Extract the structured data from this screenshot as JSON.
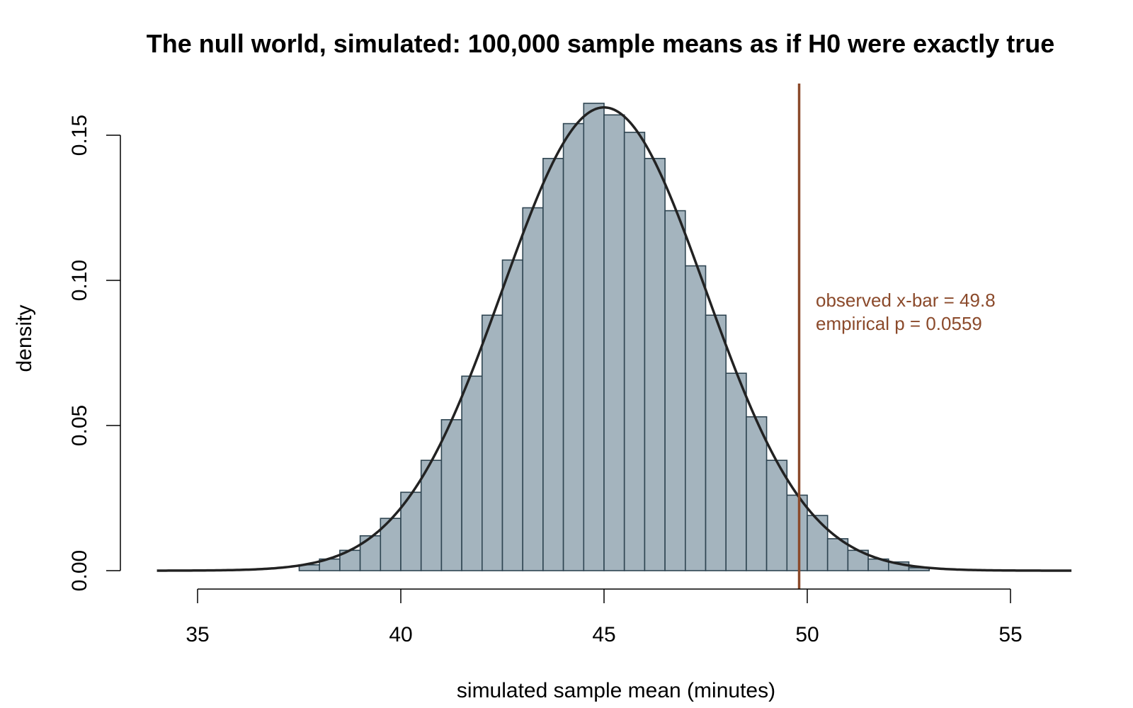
{
  "chart_data": {
    "type": "bar",
    "title": "The null world, simulated: 100,000 sample means as if H0 were exactly true",
    "xlabel": "simulated sample mean (minutes)",
    "ylabel": "density",
    "xlim": [
      33.8,
      56.5
    ],
    "ylim": [
      0,
      0.165
    ],
    "x_ticks": [
      35,
      40,
      45,
      50,
      55
    ],
    "x_tick_labels": [
      "35",
      "40",
      "45",
      "50",
      "55"
    ],
    "y_ticks": [
      0,
      0.05,
      0.1,
      0.15
    ],
    "y_tick_labels": [
      "0.00",
      "0.05",
      "0.10",
      "0.15"
    ],
    "grid": false,
    "legend": "none",
    "bin_width": 0.5,
    "bins": [
      {
        "x0": 37.5,
        "x1": 38.0,
        "density": 0.002
      },
      {
        "x0": 38.0,
        "x1": 38.5,
        "density": 0.004
      },
      {
        "x0": 38.5,
        "x1": 39.0,
        "density": 0.007
      },
      {
        "x0": 39.0,
        "x1": 39.5,
        "density": 0.012
      },
      {
        "x0": 39.5,
        "x1": 40.0,
        "density": 0.018
      },
      {
        "x0": 40.0,
        "x1": 40.5,
        "density": 0.027
      },
      {
        "x0": 40.5,
        "x1": 41.0,
        "density": 0.038
      },
      {
        "x0": 41.0,
        "x1": 41.5,
        "density": 0.052
      },
      {
        "x0": 41.5,
        "x1": 42.0,
        "density": 0.067
      },
      {
        "x0": 42.0,
        "x1": 42.5,
        "density": 0.088
      },
      {
        "x0": 42.5,
        "x1": 43.0,
        "density": 0.107
      },
      {
        "x0": 43.0,
        "x1": 43.5,
        "density": 0.125
      },
      {
        "x0": 43.5,
        "x1": 44.0,
        "density": 0.142
      },
      {
        "x0": 44.0,
        "x1": 44.5,
        "density": 0.154
      },
      {
        "x0": 44.5,
        "x1": 45.0,
        "density": 0.161
      },
      {
        "x0": 45.0,
        "x1": 45.5,
        "density": 0.157
      },
      {
        "x0": 45.5,
        "x1": 46.0,
        "density": 0.151
      },
      {
        "x0": 46.0,
        "x1": 46.5,
        "density": 0.142
      },
      {
        "x0": 46.5,
        "x1": 47.0,
        "density": 0.124
      },
      {
        "x0": 47.0,
        "x1": 47.5,
        "density": 0.105
      },
      {
        "x0": 47.5,
        "x1": 48.0,
        "density": 0.088
      },
      {
        "x0": 48.0,
        "x1": 48.5,
        "density": 0.068
      },
      {
        "x0": 48.5,
        "x1": 49.0,
        "density": 0.053
      },
      {
        "x0": 49.0,
        "x1": 49.5,
        "density": 0.038
      },
      {
        "x0": 49.5,
        "x1": 50.0,
        "density": 0.026
      },
      {
        "x0": 50.0,
        "x1": 50.5,
        "density": 0.019
      },
      {
        "x0": 50.5,
        "x1": 51.0,
        "density": 0.011
      },
      {
        "x0": 51.0,
        "x1": 51.5,
        "density": 0.007
      },
      {
        "x0": 51.5,
        "x1": 52.0,
        "density": 0.004
      },
      {
        "x0": 52.0,
        "x1": 52.5,
        "density": 0.003
      },
      {
        "x0": 52.5,
        "x1": 53.0,
        "density": 0.001
      }
    ],
    "density_curve": {
      "type": "normal",
      "mean": 45.0,
      "sd": 2.5,
      "x_range": [
        34.0,
        56.5
      ]
    },
    "observed_line": {
      "x": 49.8,
      "color": "#8b4a2b"
    },
    "annotations": [
      "observed x-bar = 49.8",
      "empirical p = 0.0559"
    ],
    "colors": {
      "bar_fill": "#a4b4be",
      "bar_stroke": "#2f4552",
      "curve": "#222222",
      "annotation": "#8b4a2b"
    }
  }
}
